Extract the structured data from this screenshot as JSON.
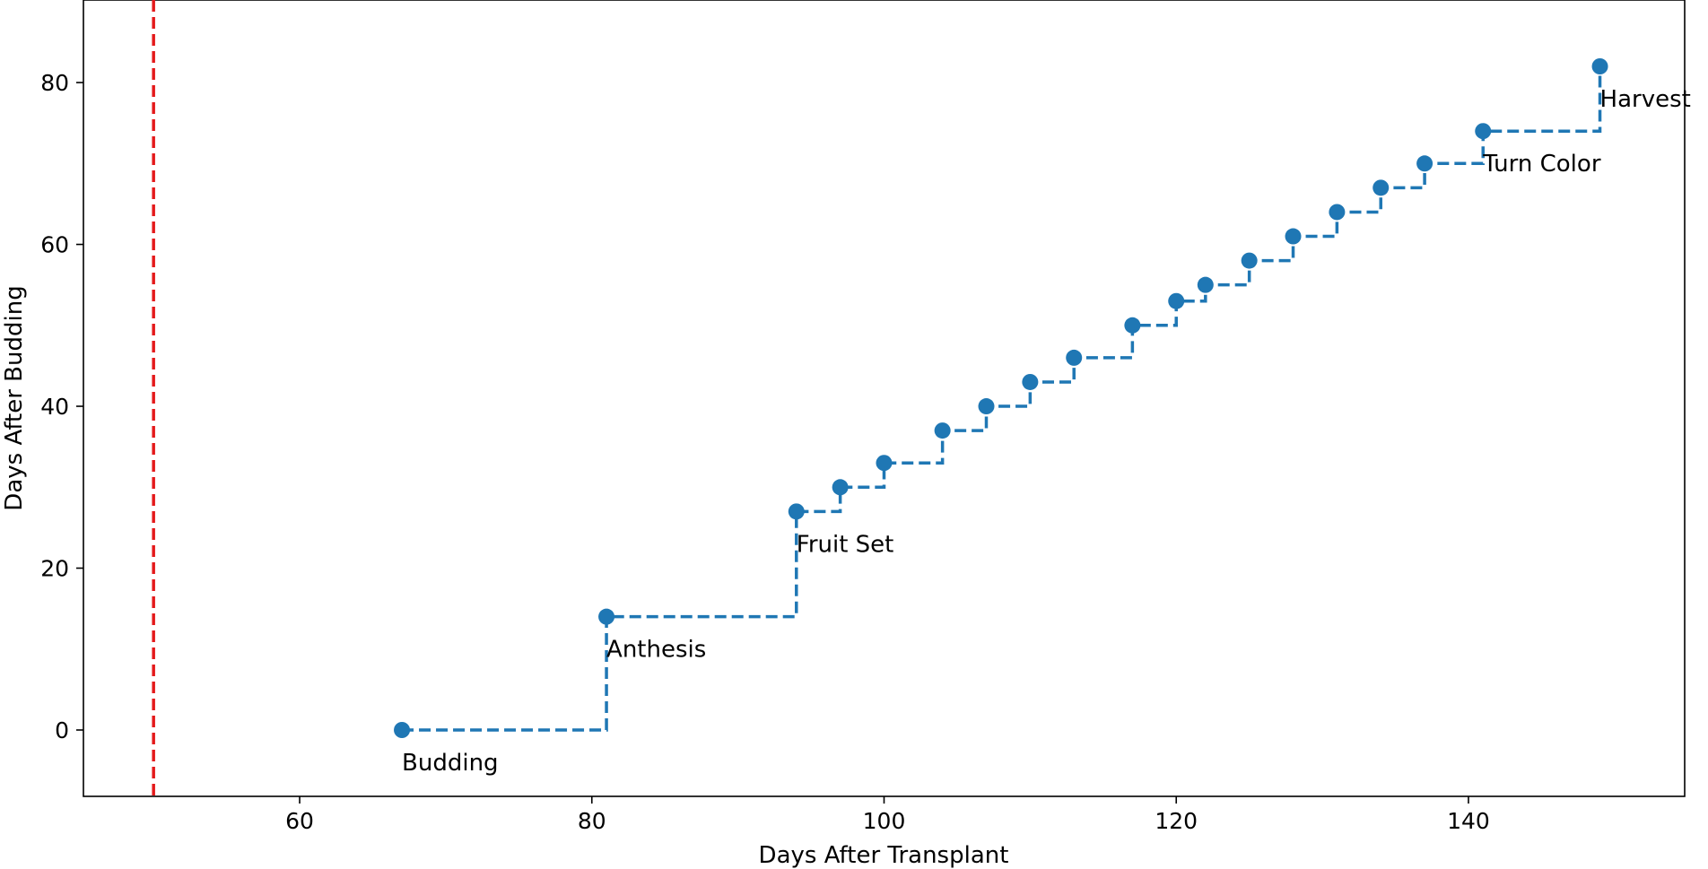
{
  "chart_data": {
    "type": "line",
    "title": "",
    "xlabel": "Days After Transplant",
    "ylabel": "Days After Budding",
    "xlim": [
      45.2,
      154.8
    ],
    "ylim": [
      -8.2,
      90.2
    ],
    "xticks": [
      60,
      80,
      100,
      120,
      140
    ],
    "yticks": [
      0,
      20,
      40,
      60,
      80
    ],
    "grid": false,
    "reference_line": {
      "x": 50,
      "color": "#e41a1c",
      "style": "dashed"
    },
    "series": [
      {
        "step": "post",
        "color": "#1f77b4",
        "line_style": "dashed",
        "marker": "circle",
        "x": [
          67,
          81,
          94,
          97,
          100,
          104,
          107,
          110,
          113,
          117,
          120,
          122,
          125,
          128,
          131,
          134,
          137,
          141,
          149
        ],
        "y": [
          0,
          14,
          27,
          30,
          33,
          37,
          40,
          43,
          46,
          50,
          53,
          55,
          58,
          61,
          64,
          67,
          70,
          74,
          82
        ]
      }
    ],
    "annotations": [
      {
        "text": "Budding",
        "x": 67,
        "y": 0
      },
      {
        "text": "Anthesis",
        "x": 81,
        "y": 14
      },
      {
        "text": "Fruit Set",
        "x": 94,
        "y": 27
      },
      {
        "text": "Turn Color",
        "x": 141,
        "y": 74
      },
      {
        "text": "Harvest",
        "x": 149,
        "y": 82
      }
    ]
  }
}
